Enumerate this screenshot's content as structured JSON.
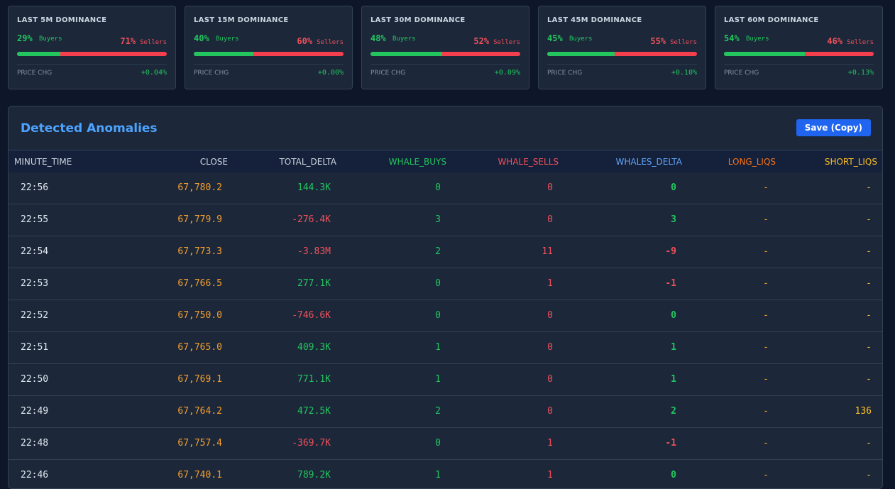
{
  "dominance_cards": [
    {
      "title": "LAST 5M DOMINANCE",
      "buyers_pct": "29%",
      "buyers_label": "Buyers",
      "sellers_pct": "71%",
      "sellers_label": "Sellers",
      "buy_fraction": 0.29,
      "price_chg_label": "PRICE CHG",
      "price_chg": "+0.04%"
    },
    {
      "title": "LAST 15M DOMINANCE",
      "buyers_pct": "40%",
      "buyers_label": "Buyers",
      "sellers_pct": "60%",
      "sellers_label": "Sellers",
      "buy_fraction": 0.4,
      "price_chg_label": "PRICE CHG",
      "price_chg": "+0.00%"
    },
    {
      "title": "LAST 30M DOMINANCE",
      "buyers_pct": "48%",
      "buyers_label": "Buyers",
      "sellers_pct": "52%",
      "sellers_label": "Sellers",
      "buy_fraction": 0.48,
      "price_chg_label": "PRICE CHG",
      "price_chg": "+0.09%"
    },
    {
      "title": "LAST 45M DOMINANCE",
      "buyers_pct": "45%",
      "buyers_label": "Buyers",
      "sellers_pct": "55%",
      "sellers_label": "Sellers",
      "buy_fraction": 0.45,
      "price_chg_label": "PRICE CHG",
      "price_chg": "+0.10%"
    },
    {
      "title": "LAST 60M DOMINANCE",
      "buyers_pct": "54%",
      "buyers_label": "Buyers",
      "sellers_pct": "46%",
      "sellers_label": "Sellers",
      "buy_fraction": 0.54,
      "price_chg_label": "PRICE CHG",
      "price_chg": "+0.13%"
    }
  ],
  "anomalies": {
    "title": "Detected Anomalies",
    "save_label": "Save (Copy)",
    "columns": {
      "minute_time": "MINUTE_TIME",
      "close": "CLOSE",
      "total_delta": "TOTAL_DELTA",
      "whale_buys": "WHALE_BUYS",
      "whale_sells": "WHALE_SELLS",
      "whales_delta": "WHALES_DELTA",
      "long_liqs": "LONG_LIQS",
      "short_liqs": "SHORT_LIQS"
    },
    "rows": [
      {
        "time": "22:56",
        "close": "67,780.2",
        "total_delta": "144.3K",
        "whale_buys": "0",
        "whale_sells": "0",
        "whales_delta": "0",
        "long_liqs": "-",
        "short_liqs": "-"
      },
      {
        "time": "22:55",
        "close": "67,779.9",
        "total_delta": "-276.4K",
        "whale_buys": "3",
        "whale_sells": "0",
        "whales_delta": "3",
        "long_liqs": "-",
        "short_liqs": "-"
      },
      {
        "time": "22:54",
        "close": "67,773.3",
        "total_delta": "-3.83M",
        "whale_buys": "2",
        "whale_sells": "11",
        "whales_delta": "-9",
        "long_liqs": "-",
        "short_liqs": "-"
      },
      {
        "time": "22:53",
        "close": "67,766.5",
        "total_delta": "277.1K",
        "whale_buys": "0",
        "whale_sells": "1",
        "whales_delta": "-1",
        "long_liqs": "-",
        "short_liqs": "-"
      },
      {
        "time": "22:52",
        "close": "67,750.0",
        "total_delta": "-746.6K",
        "whale_buys": "0",
        "whale_sells": "0",
        "whales_delta": "0",
        "long_liqs": "-",
        "short_liqs": "-"
      },
      {
        "time": "22:51",
        "close": "67,765.0",
        "total_delta": "409.3K",
        "whale_buys": "1",
        "whale_sells": "0",
        "whales_delta": "1",
        "long_liqs": "-",
        "short_liqs": "-"
      },
      {
        "time": "22:50",
        "close": "67,769.1",
        "total_delta": "771.1K",
        "whale_buys": "1",
        "whale_sells": "0",
        "whales_delta": "1",
        "long_liqs": "-",
        "short_liqs": "-"
      },
      {
        "time": "22:49",
        "close": "67,764.2",
        "total_delta": "472.5K",
        "whale_buys": "2",
        "whale_sells": "0",
        "whales_delta": "2",
        "long_liqs": "-",
        "short_liqs": "136"
      },
      {
        "time": "22:48",
        "close": "67,757.4",
        "total_delta": "-369.7K",
        "whale_buys": "0",
        "whale_sells": "1",
        "whales_delta": "-1",
        "long_liqs": "-",
        "short_liqs": "-"
      },
      {
        "time": "22:46",
        "close": "67,740.1",
        "total_delta": "789.2K",
        "whale_buys": "1",
        "whale_sells": "1",
        "whales_delta": "0",
        "long_liqs": "-",
        "short_liqs": "-"
      }
    ]
  },
  "colors": {
    "background": "#0e1729",
    "panel": "#1c283a",
    "buyers": "#22c55e",
    "sellers": "#f0505a",
    "price": "#f59e2c",
    "short_liqs": "#fbbf24",
    "title_accent": "#4da3ff",
    "button": "#1f65f0",
    "whales_delta_header": "#60a5fa",
    "long_liqs_header": "#f97316"
  }
}
